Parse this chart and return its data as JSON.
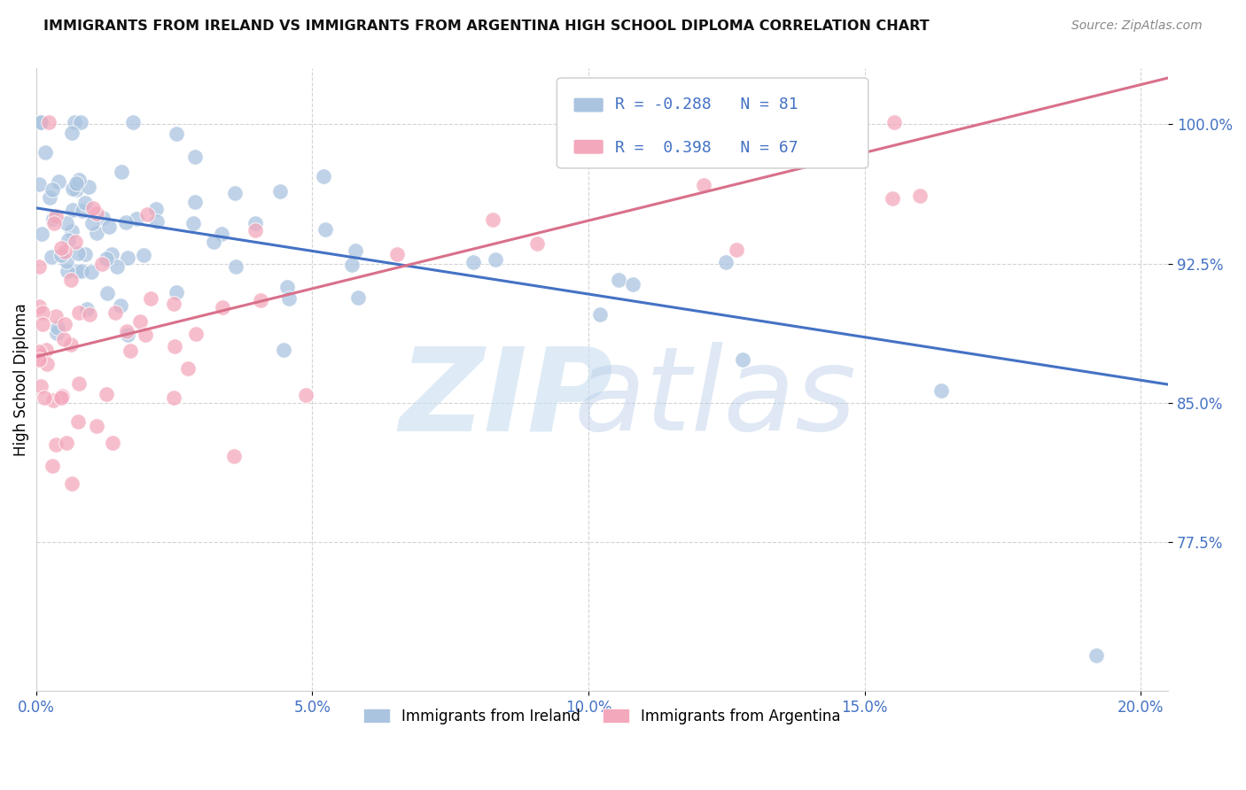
{
  "title": "IMMIGRANTS FROM IRELAND VS IMMIGRANTS FROM ARGENTINA HIGH SCHOOL DIPLOMA CORRELATION CHART",
  "source": "Source: ZipAtlas.com",
  "ylabel": "High School Diploma",
  "ytick_labels": [
    "100.0%",
    "92.5%",
    "85.0%",
    "77.5%"
  ],
  "ytick_values": [
    1.0,
    0.925,
    0.85,
    0.775
  ],
  "xtick_values": [
    0.0,
    0.05,
    0.1,
    0.15,
    0.2
  ],
  "xtick_labels": [
    "0.0%",
    "5.0%",
    "10.0%",
    "15.0%",
    "20.0%"
  ],
  "xlim": [
    0.0,
    0.205
  ],
  "ylim": [
    0.695,
    1.03
  ],
  "ireland_R": -0.288,
  "ireland_N": 81,
  "argentina_R": 0.398,
  "argentina_N": 67,
  "ireland_color": "#aac4e0",
  "argentina_color": "#f4a8bc",
  "ireland_line_color": "#4472c4",
  "argentina_line_color": "#d9708a",
  "tick_color": "#4472c4",
  "ireland_line_x0": 0.0,
  "ireland_line_y0": 0.955,
  "ireland_line_x1": 0.205,
  "ireland_line_y1": 0.86,
  "argentina_line_x0": 0.0,
  "argentina_line_y0": 0.875,
  "argentina_line_x1": 0.205,
  "argentina_line_y1": 1.025,
  "watermark_zip": "ZIP",
  "watermark_atlas": "atlas",
  "legend1_label": "Immigrants from Ireland",
  "legend2_label": "Immigrants from Argentina"
}
